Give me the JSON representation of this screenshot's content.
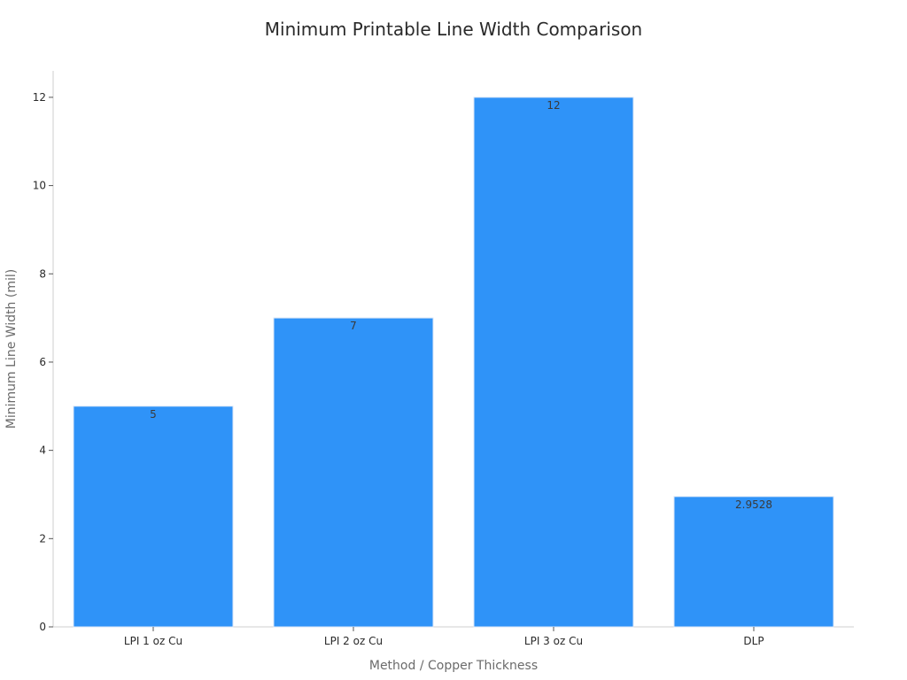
{
  "chart_data": {
    "type": "bar",
    "title": "Minimum Printable Line Width Comparison",
    "xlabel": "Method / Copper Thickness",
    "ylabel": "Minimum Line Width (mil)",
    "categories": [
      "LPI 1 oz Cu",
      "LPI 2 oz Cu",
      "LPI 3 oz Cu",
      "DLP"
    ],
    "values": [
      5,
      7,
      12,
      2.9528
    ],
    "value_labels": [
      "5",
      "7",
      "12",
      "2.9528"
    ],
    "ylim": [
      0,
      12.6
    ],
    "yticks": [
      0,
      2,
      4,
      6,
      8,
      10,
      12
    ],
    "ytick_labels": [
      "0",
      "2",
      "4",
      "6",
      "8",
      "10",
      "12"
    ],
    "bar_color": "#2f93f8",
    "grid": false,
    "legend": "none"
  }
}
